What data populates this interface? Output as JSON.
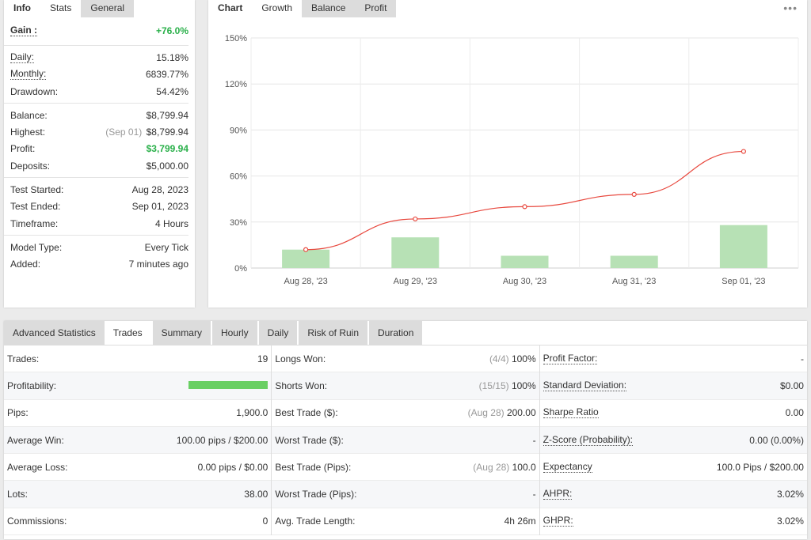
{
  "info_tabs": [
    "Info",
    "Stats",
    "General"
  ],
  "info_groups": [
    [
      {
        "label": "Gain :",
        "value": "+76.0%",
        "style": "gain"
      }
    ],
    [
      {
        "label": "Daily:",
        "value": "15.18%",
        "dotted": true
      },
      {
        "label": "Monthly:",
        "value": "6839.77%",
        "dotted": true
      },
      {
        "label": "Drawdown:",
        "value": "54.42%"
      }
    ],
    [
      {
        "label": "Balance:",
        "value": "$8,799.94"
      },
      {
        "label": "Highest:",
        "hint": "(Sep 01)",
        "value": "$8,799.94"
      },
      {
        "label": "Profit:",
        "value": "$3,799.94",
        "style": "green"
      },
      {
        "label": "Deposits:",
        "value": "$5,000.00"
      }
    ],
    [
      {
        "label": "Test Started:",
        "value": "Aug 28, 2023"
      },
      {
        "label": "Test Ended:",
        "value": "Sep 01, 2023"
      },
      {
        "label": "Timeframe:",
        "value": "4 Hours"
      }
    ],
    [
      {
        "label": "Model Type:",
        "value": "Every Tick"
      },
      {
        "label": "Added:",
        "value": "7 minutes ago"
      }
    ]
  ],
  "chart_tabs": [
    "Chart",
    "Growth",
    "Balance",
    "Profit"
  ],
  "menu_dots": "•••",
  "chart_data": {
    "type": "bar",
    "categories": [
      "Aug 28, '23",
      "Aug 29, '23",
      "Aug 30, '23",
      "Aug 31, '23",
      "Sep 01, '23"
    ],
    "y_ticks": [
      "0%",
      "30%",
      "60%",
      "90%",
      "120%",
      "150%"
    ],
    "ylim": [
      0,
      150
    ],
    "grid": true,
    "series": [
      {
        "type": "bar",
        "values": [
          12,
          20,
          8,
          8,
          28
        ],
        "color": "#b7e1b5"
      },
      {
        "type": "line",
        "values": [
          12,
          32,
          40,
          48,
          76
        ],
        "color": "#e8483e"
      }
    ]
  },
  "adv_tabs": [
    "Advanced Statistics",
    "Trades",
    "Summary",
    "Hourly",
    "Daily",
    "Risk of Ruin",
    "Duration"
  ],
  "adv_columns": [
    [
      {
        "label": "Trades:",
        "value": "19"
      },
      {
        "label": "Profitability:",
        "bar": 1.0
      },
      {
        "label": "Pips:",
        "value": "1,900.0"
      },
      {
        "label": "Average Win:",
        "value": "100.00 pips / $200.00"
      },
      {
        "label": "Average Loss:",
        "value": "0.00 pips / $0.00"
      },
      {
        "label": "Lots:",
        "value": "38.00"
      },
      {
        "label": "Commissions:",
        "value": "0"
      }
    ],
    [
      {
        "label": "Longs Won:",
        "hint": "(4/4)",
        "value": "100%"
      },
      {
        "label": "Shorts Won:",
        "hint": "(15/15)",
        "value": "100%"
      },
      {
        "label": "Best Trade ($):",
        "hint": "(Aug 28)",
        "value": "200.00"
      },
      {
        "label": "Worst Trade ($):",
        "value": "-"
      },
      {
        "label": "Best Trade (Pips):",
        "hint": "(Aug 28)",
        "value": "100.0"
      },
      {
        "label": "Worst Trade (Pips):",
        "value": "-"
      },
      {
        "label": "Avg. Trade Length:",
        "value": "4h 26m"
      }
    ],
    [
      {
        "label": "Profit Factor:",
        "value": "-",
        "dotted": true
      },
      {
        "label": "Standard Deviation:",
        "value": "$0.00",
        "dotted": true
      },
      {
        "label": "Sharpe Ratio",
        "value": "0.00",
        "dotted": true
      },
      {
        "label": "Z-Score (Probability):",
        "value": "0.00 (0.00%)",
        "dotted": true
      },
      {
        "label": "Expectancy",
        "value": "100.0 Pips / $200.00",
        "dotted": true
      },
      {
        "label": "AHPR:",
        "value": "3.02%",
        "dotted": true
      },
      {
        "label": "GHPR:",
        "value": "3.02%",
        "dotted": true
      }
    ]
  ]
}
